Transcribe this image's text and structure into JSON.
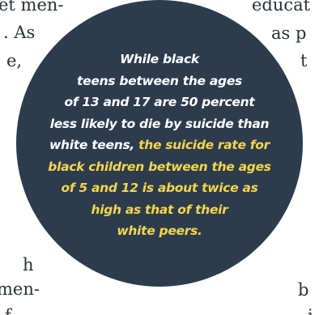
{
  "left_column": {
    "fragments": [
      "et men-",
      ". As",
      "e,",
      "h",
      "men-",
      "f"
    ]
  },
  "right_column": {
    "fragments": [
      "educat",
      "as p",
      "t",
      "b",
      "i"
    ]
  },
  "pull_quote": {
    "lines_plain": [
      "While black",
      "teens between the ages",
      "of 13 and 17 are 50 percent",
      "less likely to die by suicide than"
    ],
    "line5_plain": "white teens,",
    "line5_highlight": "the suicide rate for",
    "lines_highlight": [
      "black children between the ages",
      "of 5 and 12 is about twice as",
      "high as that of their",
      "white peers."
    ],
    "colors": {
      "circle": "#2c3c4d",
      "text": "#ffffff",
      "highlight": "#f6d54a",
      "body_text": "#26333d"
    }
  }
}
